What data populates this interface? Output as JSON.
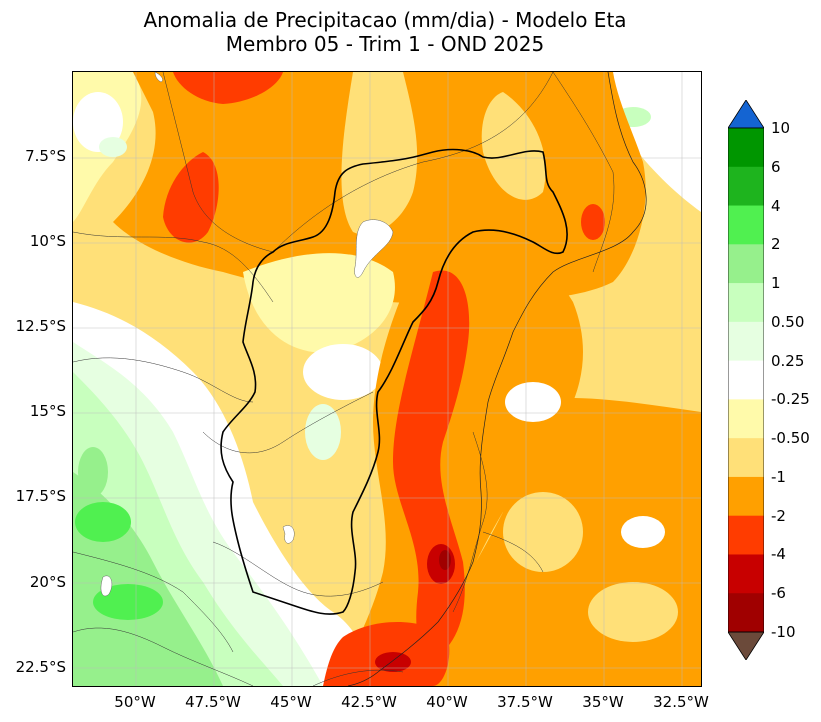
{
  "title_line1": "Anomalia de Precipitacao (mm/dia) - Modelo Eta",
  "title_line2": "Membro 05 - Trim 1 - OND 2025",
  "lat_labels": [
    "7.5°S",
    "10°S",
    "12.5°S",
    "15°S",
    "17.5°S",
    "20°S",
    "22.5°S"
  ],
  "lon_labels": [
    "50°W",
    "47.5°W",
    "45°W",
    "42.5°W",
    "40°W",
    "37.5°W",
    "35°W",
    "32.5°W"
  ],
  "colorbar_labels": [
    "10",
    "6",
    "4",
    "2",
    "1",
    "0.50",
    "0.25",
    "-0.25",
    "-0.50",
    "-1",
    "-2",
    "-4",
    "-6",
    "-10"
  ],
  "colors": {
    "over": "#1464d2",
    "under": "#6b4a3a",
    "levels": [
      "#009600",
      "#1eb41e",
      "#50f050",
      "#96f08c",
      "#c8ffbe",
      "#e6ffe1",
      "#ffffff",
      "#fffaaa",
      "#ffe078",
      "#ffa000",
      "#ff3c00",
      "#c80000",
      "#a00000"
    ]
  }
}
